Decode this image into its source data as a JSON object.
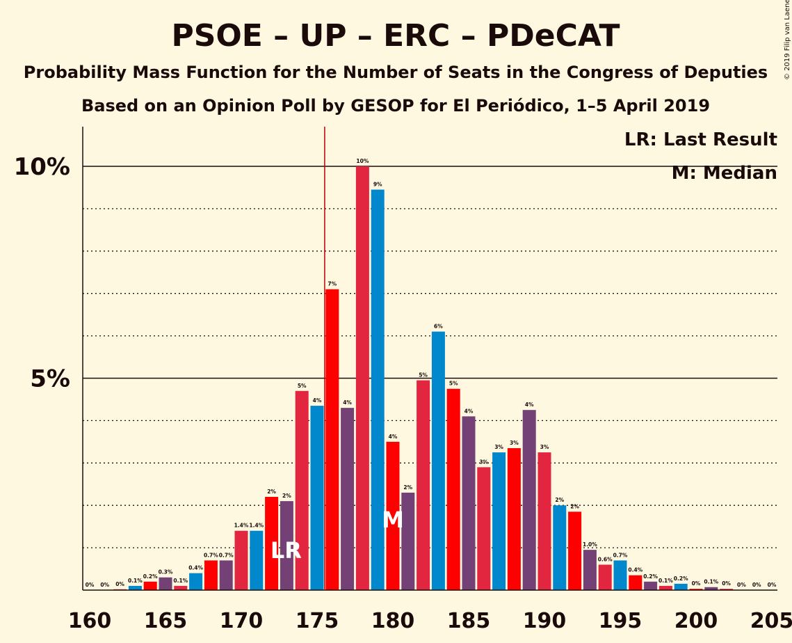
{
  "title": "PSOE – UP – ERC – PDeCAT",
  "subtitle1": "Probability Mass Function for the Number of Seats in the Congress of Deputies",
  "subtitle2": "Based on an Opinion Poll by GESOP for El Periódico, 1–5 April 2019",
  "copyright": "© 2019 Filip van Laenen",
  "legend": {
    "lr": "LR: Last Result",
    "m": "M: Median"
  },
  "markers": {
    "lr_label": "LR",
    "m_label": "M",
    "lr_seat": 173,
    "m_seat": 180,
    "majority_line_seat": 175.5
  },
  "colors": {
    "background": "#FFF8E1",
    "red1": "#E3263F",
    "red2": "#FF0000",
    "blue": "#0087CC",
    "purple": "#734176",
    "majority": "#C00000"
  },
  "chart_data": {
    "type": "bar",
    "x": [
      160,
      161,
      162,
      163,
      164,
      165,
      166,
      167,
      168,
      169,
      170,
      171,
      172,
      173,
      174,
      175,
      176,
      177,
      178,
      179,
      180,
      181,
      182,
      183,
      184,
      185,
      186,
      187,
      188,
      189,
      190,
      191,
      192,
      193,
      194,
      195,
      196,
      197,
      198,
      199,
      200,
      201,
      202,
      203,
      204,
      205
    ],
    "values": [
      0,
      0,
      0.02,
      0.1,
      0.2,
      0.3,
      0.1,
      0.4,
      0.7,
      0.7,
      1.4,
      1.4,
      2.2,
      2.1,
      4.7,
      4.35,
      7.1,
      4.3,
      10.0,
      9.45,
      3.5,
      2.3,
      4.95,
      6.1,
      4.75,
      4.1,
      2.9,
      3.25,
      3.35,
      4.25,
      3.25,
      2.0,
      1.85,
      0.95,
      0.6,
      0.7,
      0.35,
      0.2,
      0.1,
      0.15,
      0.03,
      0.07,
      0.03,
      0,
      0,
      0
    ],
    "labels": [
      "0%",
      "0%",
      "0%",
      "0.1%",
      "0.2%",
      "0.3%",
      "0.1%",
      "0.4%",
      "0.7%",
      "0.7%",
      "1.4%",
      "1.4%",
      "2%",
      "2%",
      "5%",
      "4%",
      "7%",
      "4%",
      "10%",
      "9%",
      "4%",
      "2%",
      "5%",
      "6%",
      "5%",
      "4%",
      "3%",
      "3%",
      "3%",
      "4%",
      "3%",
      "2%",
      "2%",
      "1.0%",
      "0.6%",
      "0.7%",
      "0.4%",
      "0.2%",
      "0.1%",
      "0.2%",
      "0%",
      "0.1%",
      "0%",
      "0%",
      "0%",
      "0%"
    ],
    "colors": [
      "#E3263F",
      "#FF0000",
      "#E3263F",
      "#0087CC",
      "#FF0000",
      "#734176",
      "#E3263F",
      "#0087CC",
      "#FF0000",
      "#734176",
      "#E3263F",
      "#0087CC",
      "#FF0000",
      "#734176",
      "#E3263F",
      "#0087CC",
      "#FF0000",
      "#734176",
      "#E3263F",
      "#0087CC",
      "#FF0000",
      "#734176",
      "#E3263F",
      "#0087CC",
      "#FF0000",
      "#734176",
      "#E3263F",
      "#0087CC",
      "#FF0000",
      "#734176",
      "#E3263F",
      "#0087CC",
      "#FF0000",
      "#734176",
      "#E3263F",
      "#0087CC",
      "#FF0000",
      "#734176",
      "#E3263F",
      "#0087CC",
      "#FF0000",
      "#734176",
      "#E3263F",
      "#0087CC",
      "#FF0000",
      "#734176"
    ],
    "x_ticks": [
      160,
      165,
      170,
      175,
      180,
      185,
      190,
      195,
      200,
      205
    ],
    "y_ticks": [
      {
        "value": 5,
        "label": "5%"
      },
      {
        "value": 10,
        "label": "10%"
      }
    ],
    "ylim": [
      0,
      11
    ],
    "xlim": [
      160,
      205
    ],
    "grid": "dotted every 1%, solid at 5% and 10%"
  }
}
